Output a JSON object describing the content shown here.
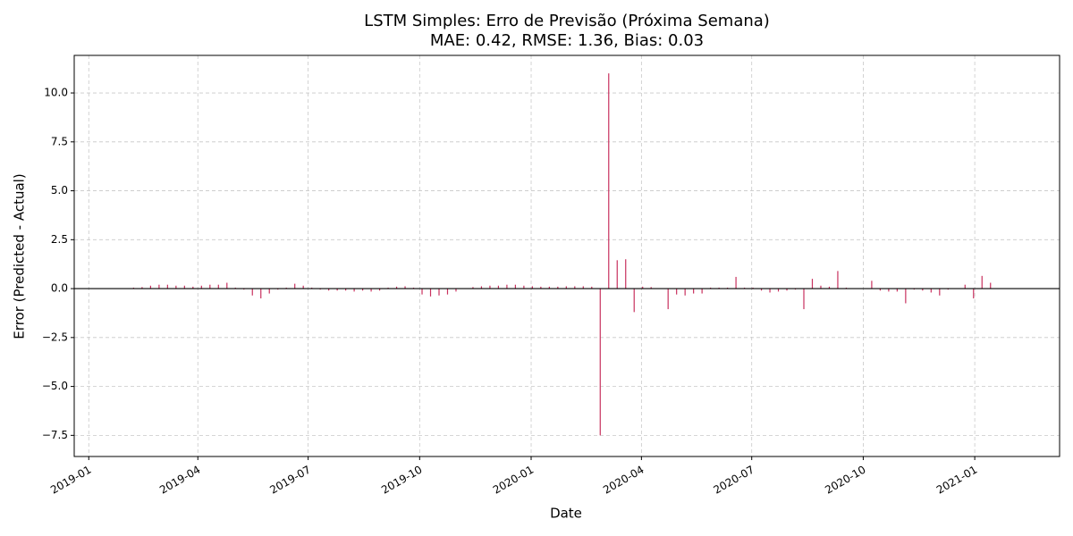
{
  "chart_data": {
    "type": "bar",
    "title": "LSTM Simples: Erro de Previsão (Próxima Semana)",
    "subtitle": "MAE: 0.42, RMSE: 1.36, Bias: 0.03",
    "x_label": "Date",
    "y_label": "Error (Predicted - Actual)",
    "color": "#c8325f",
    "grid": true,
    "x": [
      "2019-01-31",
      "2019-02-07",
      "2019-02-14",
      "2019-02-21",
      "2019-02-28",
      "2019-03-07",
      "2019-03-14",
      "2019-03-21",
      "2019-03-28",
      "2019-04-04",
      "2019-04-11",
      "2019-04-18",
      "2019-04-25",
      "2019-05-02",
      "2019-05-09",
      "2019-05-16",
      "2019-05-23",
      "2019-05-30",
      "2019-06-06",
      "2019-06-13",
      "2019-06-20",
      "2019-06-27",
      "2019-07-04",
      "2019-07-11",
      "2019-07-18",
      "2019-07-25",
      "2019-08-01",
      "2019-08-08",
      "2019-08-15",
      "2019-08-22",
      "2019-08-29",
      "2019-09-05",
      "2019-09-12",
      "2019-09-19",
      "2019-09-26",
      "2019-10-03",
      "2019-10-10",
      "2019-10-17",
      "2019-10-24",
      "2019-10-31",
      "2019-11-07",
      "2019-11-14",
      "2019-11-21",
      "2019-11-28",
      "2019-12-05",
      "2019-12-12",
      "2019-12-19",
      "2019-12-26",
      "2020-01-02",
      "2020-01-09",
      "2020-01-16",
      "2020-01-23",
      "2020-01-30",
      "2020-02-06",
      "2020-02-13",
      "2020-02-20",
      "2020-02-27",
      "2020-03-05",
      "2020-03-12",
      "2020-03-19",
      "2020-03-26",
      "2020-04-02",
      "2020-04-09",
      "2020-04-16",
      "2020-04-23",
      "2020-04-30",
      "2020-05-07",
      "2020-05-14",
      "2020-05-21",
      "2020-05-28",
      "2020-06-04",
      "2020-06-11",
      "2020-06-18",
      "2020-06-25",
      "2020-07-02",
      "2020-07-09",
      "2020-07-16",
      "2020-07-23",
      "2020-07-30",
      "2020-08-06",
      "2020-08-13",
      "2020-08-20",
      "2020-08-27",
      "2020-09-03",
      "2020-09-10",
      "2020-09-17",
      "2020-09-24",
      "2020-10-01",
      "2020-10-08",
      "2020-10-15",
      "2020-10-22",
      "2020-10-29",
      "2020-11-05",
      "2020-11-12",
      "2020-11-19",
      "2020-11-26",
      "2020-12-03",
      "2020-12-10",
      "2020-12-17",
      "2020-12-24",
      "2020-12-31",
      "2021-01-07",
      "2021-01-14"
    ],
    "values": [
      0.02,
      0.05,
      0.08,
      0.15,
      0.2,
      0.2,
      0.15,
      0.15,
      0.1,
      0.15,
      0.2,
      0.2,
      0.3,
      0.05,
      -0.05,
      -0.35,
      -0.5,
      -0.25,
      -0.05,
      0.05,
      0.25,
      0.15,
      0.05,
      -0.05,
      -0.1,
      -0.1,
      -0.1,
      -0.15,
      -0.1,
      -0.15,
      -0.1,
      0.05,
      0.1,
      0.12,
      0.05,
      -0.3,
      -0.4,
      -0.35,
      -0.3,
      -0.15,
      0.02,
      0.08,
      0.12,
      0.15,
      0.15,
      0.2,
      0.2,
      0.15,
      0.12,
      0.1,
      0.1,
      0.1,
      0.12,
      0.12,
      0.12,
      0.1,
      -7.5,
      11.0,
      1.45,
      1.5,
      -1.2,
      0.1,
      0.08,
      0.02,
      -1.05,
      -0.3,
      -0.35,
      -0.25,
      -0.25,
      0.05,
      0.05,
      0.05,
      0.6,
      0.05,
      0.05,
      -0.1,
      -0.2,
      -0.15,
      -0.1,
      -0.05,
      -1.05,
      0.5,
      0.15,
      0.1,
      0.9,
      0.05,
      0.02,
      0.02,
      0.4,
      -0.1,
      -0.15,
      -0.15,
      -0.75,
      -0.05,
      -0.1,
      -0.2,
      -0.35,
      -0.05,
      0.02,
      0.2,
      -0.5,
      0.65,
      0.3
    ],
    "xlim": [
      "2018-12-20",
      "2021-03-12"
    ],
    "xticks": [
      "2019-01",
      "2019-04",
      "2019-07",
      "2019-10",
      "2020-01",
      "2020-04",
      "2020-07",
      "2020-10",
      "2021-01"
    ],
    "ylim": [
      -8.58,
      11.92
    ],
    "yticks": [
      {
        "value": -7.5,
        "label": "−7.5"
      },
      {
        "value": -5,
        "label": "−5.0"
      },
      {
        "value": -2.5,
        "label": "−2.5"
      },
      {
        "value": 0,
        "label": "0.0"
      },
      {
        "value": 2.5,
        "label": "2.5"
      },
      {
        "value": 5,
        "label": "5.0"
      },
      {
        "value": 7.5,
        "label": "7.5"
      },
      {
        "value": 10,
        "label": "10.0"
      }
    ]
  }
}
